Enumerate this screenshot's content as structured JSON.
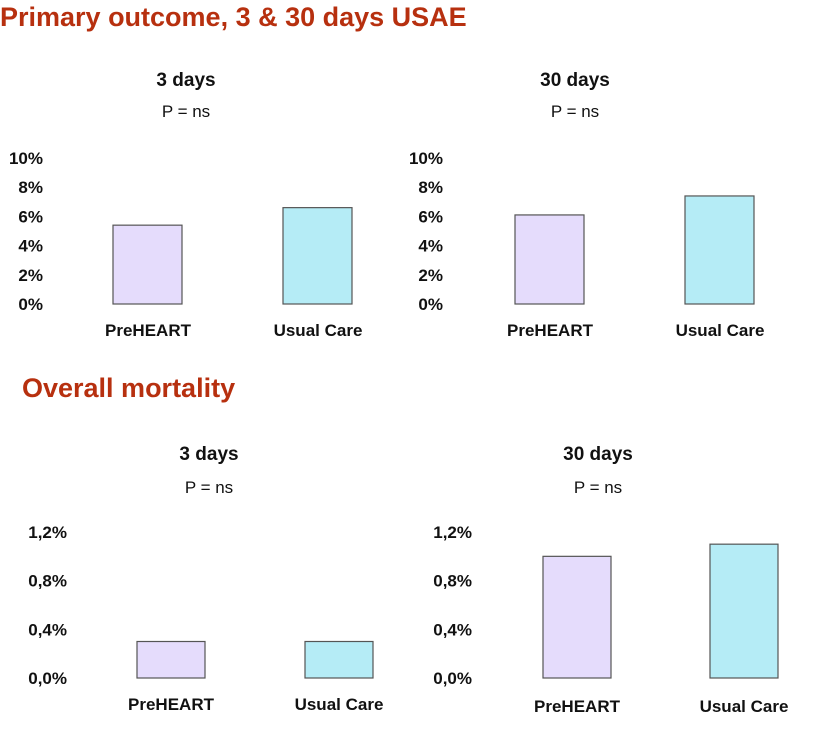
{
  "sections": {
    "primary_title": "Primary outcome, 3 & 30 days USAE",
    "mortality_title": "Overall mortality"
  },
  "colors": {
    "title": "#b7300f",
    "preheart": "#e5dcfc",
    "usual_care": "#b5ecf6",
    "bar_outline": "#555555"
  },
  "chart_data": [
    {
      "type": "bar",
      "title": "3 days",
      "subtitle": "P = ns",
      "categories": [
        "PreHEART",
        "Usual Care"
      ],
      "values": [
        5.4,
        6.6
      ],
      "ylim": [
        0,
        10
      ],
      "yticks": [
        0,
        2,
        4,
        6,
        8,
        10
      ],
      "yticklabels": [
        "0%",
        "2%",
        "4%",
        "6%",
        "8%",
        "10%"
      ],
      "grid": false,
      "legend": false
    },
    {
      "type": "bar",
      "title": "30 days",
      "subtitle": "P = ns",
      "categories": [
        "PreHEART",
        "Usual Care"
      ],
      "values": [
        6.1,
        7.4
      ],
      "ylim": [
        0,
        10
      ],
      "yticks": [
        0,
        2,
        4,
        6,
        8,
        10
      ],
      "yticklabels": [
        "0%",
        "2%",
        "4%",
        "6%",
        "8%",
        "10%"
      ],
      "grid": false,
      "legend": false
    },
    {
      "type": "bar",
      "title": "3 days",
      "subtitle": "P = ns",
      "categories": [
        "PreHEART",
        "Usual Care"
      ],
      "values": [
        0.3,
        0.3
      ],
      "ylim": [
        0,
        1.2
      ],
      "yticks": [
        0,
        0.4,
        0.8,
        1.2
      ],
      "yticklabels": [
        "0,0%",
        "0,4%",
        "0,8%",
        "1,2%"
      ],
      "grid": false,
      "legend": false
    },
    {
      "type": "bar",
      "title": "30 days",
      "subtitle": "P = ns",
      "categories": [
        "PreHEART",
        "Usual Care"
      ],
      "values": [
        1.0,
        1.1
      ],
      "ylim": [
        0,
        1.2
      ],
      "yticks": [
        0,
        0.4,
        0.8,
        1.2
      ],
      "yticklabels": [
        "0,0%",
        "0,4%",
        "0,8%",
        "1,2%"
      ],
      "grid": false,
      "legend": false
    }
  ]
}
